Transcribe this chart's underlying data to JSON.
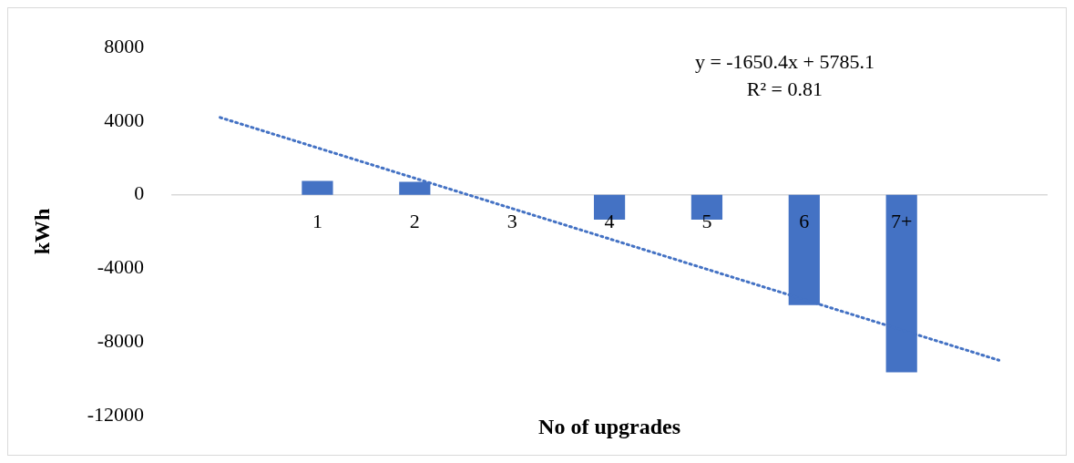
{
  "chart_data": {
    "type": "bar",
    "xlabel": "No of upgrades",
    "ylabel": "kWh",
    "categories": [
      null,
      "1",
      "2",
      "3",
      "4",
      "5",
      "6",
      "7+",
      null
    ],
    "series": [
      {
        "color": "#4472c4",
        "values": [
          null,
          750,
          700,
          0,
          -1350,
          -1350,
          -6000,
          -9650,
          null
        ]
      },
      {
        "type": "line",
        "color": "#4472c4",
        "line_style": "dotted",
        "values": [
          4200,
          2550,
          900,
          -750,
          -2400,
          -4050,
          -5700,
          -7350,
          -9000
        ]
      }
    ],
    "ylim": [
      -12000,
      8000
    ],
    "yticks": [
      -12000,
      -8000,
      -4000,
      0,
      4000,
      8000
    ],
    "grid": false,
    "legend": false,
    "annotations": [
      "y = -1650.4x + 5785.1",
      "R² = 0.81"
    ]
  }
}
